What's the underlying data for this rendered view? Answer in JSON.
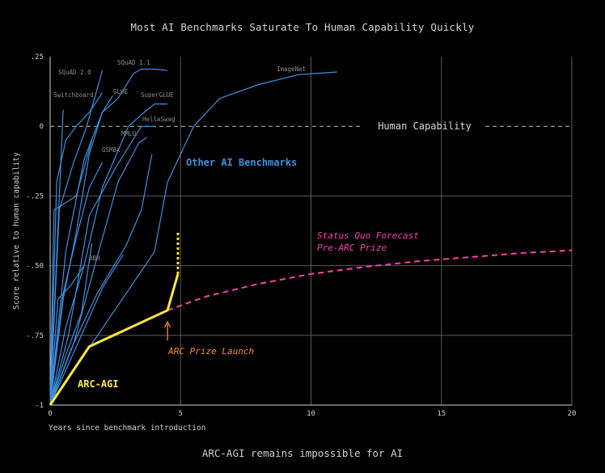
{
  "title": "Most AI Benchmarks Saturate To Human Capability Quickly",
  "caption": "ARC-AGI remains impossible for AI",
  "colors": {
    "background": "#000000",
    "grid": "#5a5a5a",
    "benchmark": "#3d8fe0",
    "arc": "#ffe83a",
    "forecast": "#ff3fb0",
    "launch": "#ff8a2a",
    "human": "#bdbdbd"
  },
  "chart_data": {
    "type": "line",
    "title": "Most AI Benchmarks Saturate To Human Capability Quickly",
    "xlabel": "Years since benchmark introduction",
    "ylabel": "Score relative to human capability",
    "xlim": [
      0,
      20
    ],
    "ylim": [
      -1,
      0.25
    ],
    "xticks": [
      0,
      5,
      10,
      15,
      20
    ],
    "xtick_labels": [
      "0",
      "5",
      "10",
      "15",
      "20"
    ],
    "yticks": [
      0.25,
      0,
      -0.25,
      -0.5,
      -0.75,
      -1
    ],
    "ytick_labels": [
      ".25",
      "0",
      "-.25",
      "-.50",
      "-.75",
      "-1"
    ],
    "grid": true,
    "human_capability": {
      "y": 0,
      "label": "Human Capability"
    },
    "benchmark_group_label": "Other AI Benchmarks",
    "benchmarks": [
      {
        "name": "Switchboard",
        "x": [
          0,
          0.5
        ],
        "y": [
          -1,
          0.06
        ]
      },
      {
        "name": "SQuAD 2.0",
        "x": [
          0,
          0.35,
          0.9,
          1.4,
          2.0
        ],
        "y": [
          -1,
          -0.3,
          -0.13,
          0.0,
          0.2
        ]
      },
      {
        "name": "SQuAD 1.1",
        "x": [
          0,
          0.6,
          1.3,
          2.0,
          2.6,
          3.2,
          3.5,
          4.0,
          4.5
        ],
        "y": [
          -1,
          -0.45,
          -0.12,
          0.05,
          0.1,
          0.19,
          0.205,
          0.205,
          0.2
        ]
      },
      {
        "name": "GLUE",
        "x": [
          0,
          0.5,
          1.0,
          1.5,
          2.0,
          2.4
        ],
        "y": [
          -1,
          -0.62,
          -0.38,
          -0.1,
          0.05,
          0.11
        ]
      },
      {
        "name": "SuperGLUE",
        "x": [
          0,
          0.6,
          1.3,
          2.0,
          3.0,
          3.6,
          4.0,
          4.5
        ],
        "y": [
          -1,
          -0.72,
          -0.5,
          -0.22,
          0.0,
          0.05,
          0.08,
          0.08
        ]
      },
      {
        "name": "HellaSwag",
        "x": [
          0,
          0.7,
          1.5,
          2.5,
          3.5,
          4.0
        ],
        "y": [
          -1,
          -0.75,
          -0.32,
          -0.15,
          0.0,
          0.0
        ]
      },
      {
        "name": "MMLU",
        "x": [
          0,
          0.9,
          1.8,
          2.6,
          3.4,
          3.7
        ],
        "y": [
          -1,
          -0.78,
          -0.47,
          -0.2,
          -0.06,
          -0.04
        ]
      },
      {
        "name": "GSM8k",
        "x": [
          0,
          0.5,
          1.0,
          1.5,
          2.0
        ],
        "y": [
          -1,
          -0.6,
          -0.4,
          -0.22,
          -0.13
        ]
      },
      {
        "name": "BBH",
        "x": [
          0,
          0.6,
          1.2,
          1.6
        ],
        "y": [
          -1,
          -0.82,
          -0.67,
          -0.42
        ]
      },
      {
        "name": "",
        "x": [
          0,
          0.25,
          0.6,
          1.0,
          1.5,
          2.0
        ],
        "y": [
          -1,
          -0.2,
          -0.05,
          0.0,
          0.05,
          0.12
        ]
      },
      {
        "name": "",
        "x": [
          0,
          0.15,
          0.5,
          1.0,
          1.6
        ],
        "y": [
          -1,
          -0.3,
          -0.28,
          -0.25,
          -0.05
        ]
      },
      {
        "name": "",
        "x": [
          0,
          0.3,
          0.8,
          1.3
        ],
        "y": [
          -1,
          -0.62,
          -0.57,
          -0.5
        ]
      },
      {
        "name": "",
        "x": [
          0,
          1.2,
          2.0,
          2.8
        ],
        "y": [
          -1,
          -0.75,
          -0.58,
          -0.46
        ]
      },
      {
        "name": "",
        "x": [
          0,
          0.8,
          1.8,
          2.9,
          3.5,
          3.9
        ],
        "y": [
          -1,
          -0.8,
          -0.6,
          -0.43,
          -0.3,
          -0.1
        ]
      },
      {
        "name": "ImageNet",
        "x": [
          0,
          4.0,
          4.5,
          5.5,
          6.5,
          8.0,
          9.5,
          11.0
        ],
        "y": [
          -1,
          -0.45,
          -0.2,
          0.0,
          0.1,
          0.15,
          0.185,
          0.195
        ]
      }
    ],
    "arc_agi": {
      "name": "ARC-AGI",
      "x": [
        0,
        1.5,
        4.5,
        4.9
      ],
      "y": [
        -1,
        -0.79,
        -0.66,
        -0.53
      ],
      "projection": {
        "x": [
          4.9,
          4.9
        ],
        "y": [
          -0.53,
          -0.38
        ]
      }
    },
    "forecast": {
      "name": "Status Quo Forecast Pre-ARC Prize",
      "name_lines": [
        "Status Quo Forecast",
        "Pre-ARC Prize"
      ],
      "x": [
        4.5,
        6,
        8,
        10,
        12,
        14,
        16,
        18,
        20
      ],
      "y": [
        -0.66,
        -0.61,
        -0.565,
        -0.53,
        -0.505,
        -0.485,
        -0.47,
        -0.455,
        -0.445
      ]
    },
    "annotation": {
      "text": "ARC Prize Launch",
      "x": 4.5,
      "y": -0.66
    }
  }
}
